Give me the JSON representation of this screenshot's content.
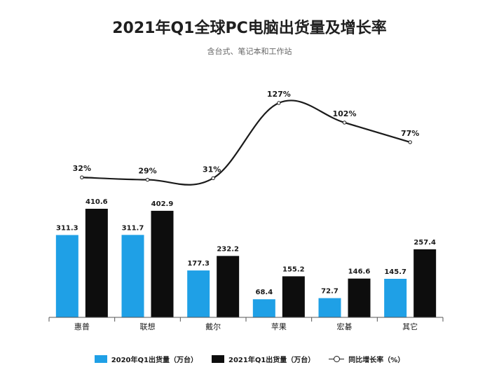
{
  "chart_data": {
    "type": "bar",
    "title": "2021年Q1全球PC电脑出货量及增长率",
    "subtitle": "含台式、笔记本和工作站",
    "categories": [
      "惠普",
      "联想",
      "戴尔",
      "苹果",
      "宏碁",
      "其它"
    ],
    "series": [
      {
        "name": "2020年Q1出货量（万台）",
        "type": "bar",
        "color": "#1fa0e6",
        "values": [
          311.3,
          311.7,
          177.3,
          68.4,
          72.7,
          145.7
        ]
      },
      {
        "name": "2021年Q1出货量（万台）",
        "type": "bar",
        "color": "#0d0d0d",
        "values": [
          410.6,
          402.9,
          232.2,
          155.2,
          146.6,
          257.4
        ]
      },
      {
        "name": "同比增长率（%）",
        "type": "line",
        "color": "#1a1a1a",
        "values": [
          32,
          29,
          31,
          127,
          102,
          77
        ],
        "labels": [
          "32%",
          "29%",
          "31%",
          "127%",
          "102%",
          "77%"
        ]
      }
    ],
    "legend_position": "bottom",
    "grid": false
  }
}
